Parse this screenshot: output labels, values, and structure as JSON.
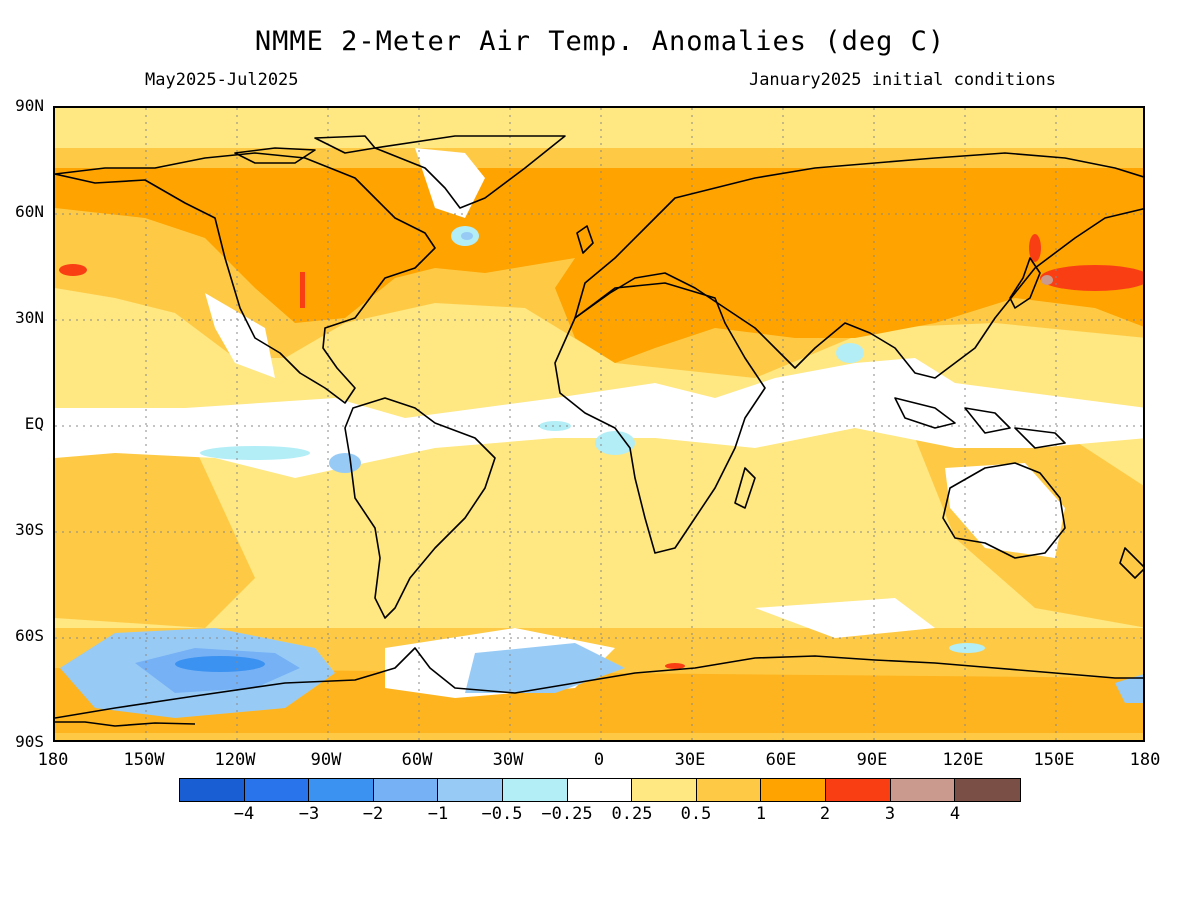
{
  "title": "NMME 2-Meter Air Temp. Anomalies (deg C)",
  "period": "May2025-Jul2025",
  "initial_conditions": "January2025 initial conditions",
  "lat_labels": [
    "90N",
    "60N",
    "30N",
    "EQ",
    "30S",
    "60S",
    "90S"
  ],
  "lon_labels": [
    "180",
    "150W",
    "120W",
    "90W",
    "60W",
    "30W",
    "0",
    "30E",
    "60E",
    "90E",
    "120E",
    "150E",
    "180"
  ],
  "colorbar": {
    "colors": [
      "#1a5ed3",
      "#2a74eb",
      "#3b92f1",
      "#76b1f5",
      "#97cbf6",
      "#b3eef7",
      "#ffffff",
      "#ffe781",
      "#feca45",
      "#fea300",
      "#f93e14",
      "#c99a8d",
      "#7a4f45"
    ],
    "labels": [
      "−4",
      "−3",
      "−2",
      "−1",
      "−0.5",
      "−0.25",
      "0.25",
      "0.5",
      "1",
      "2",
      "3",
      "4"
    ]
  }
}
